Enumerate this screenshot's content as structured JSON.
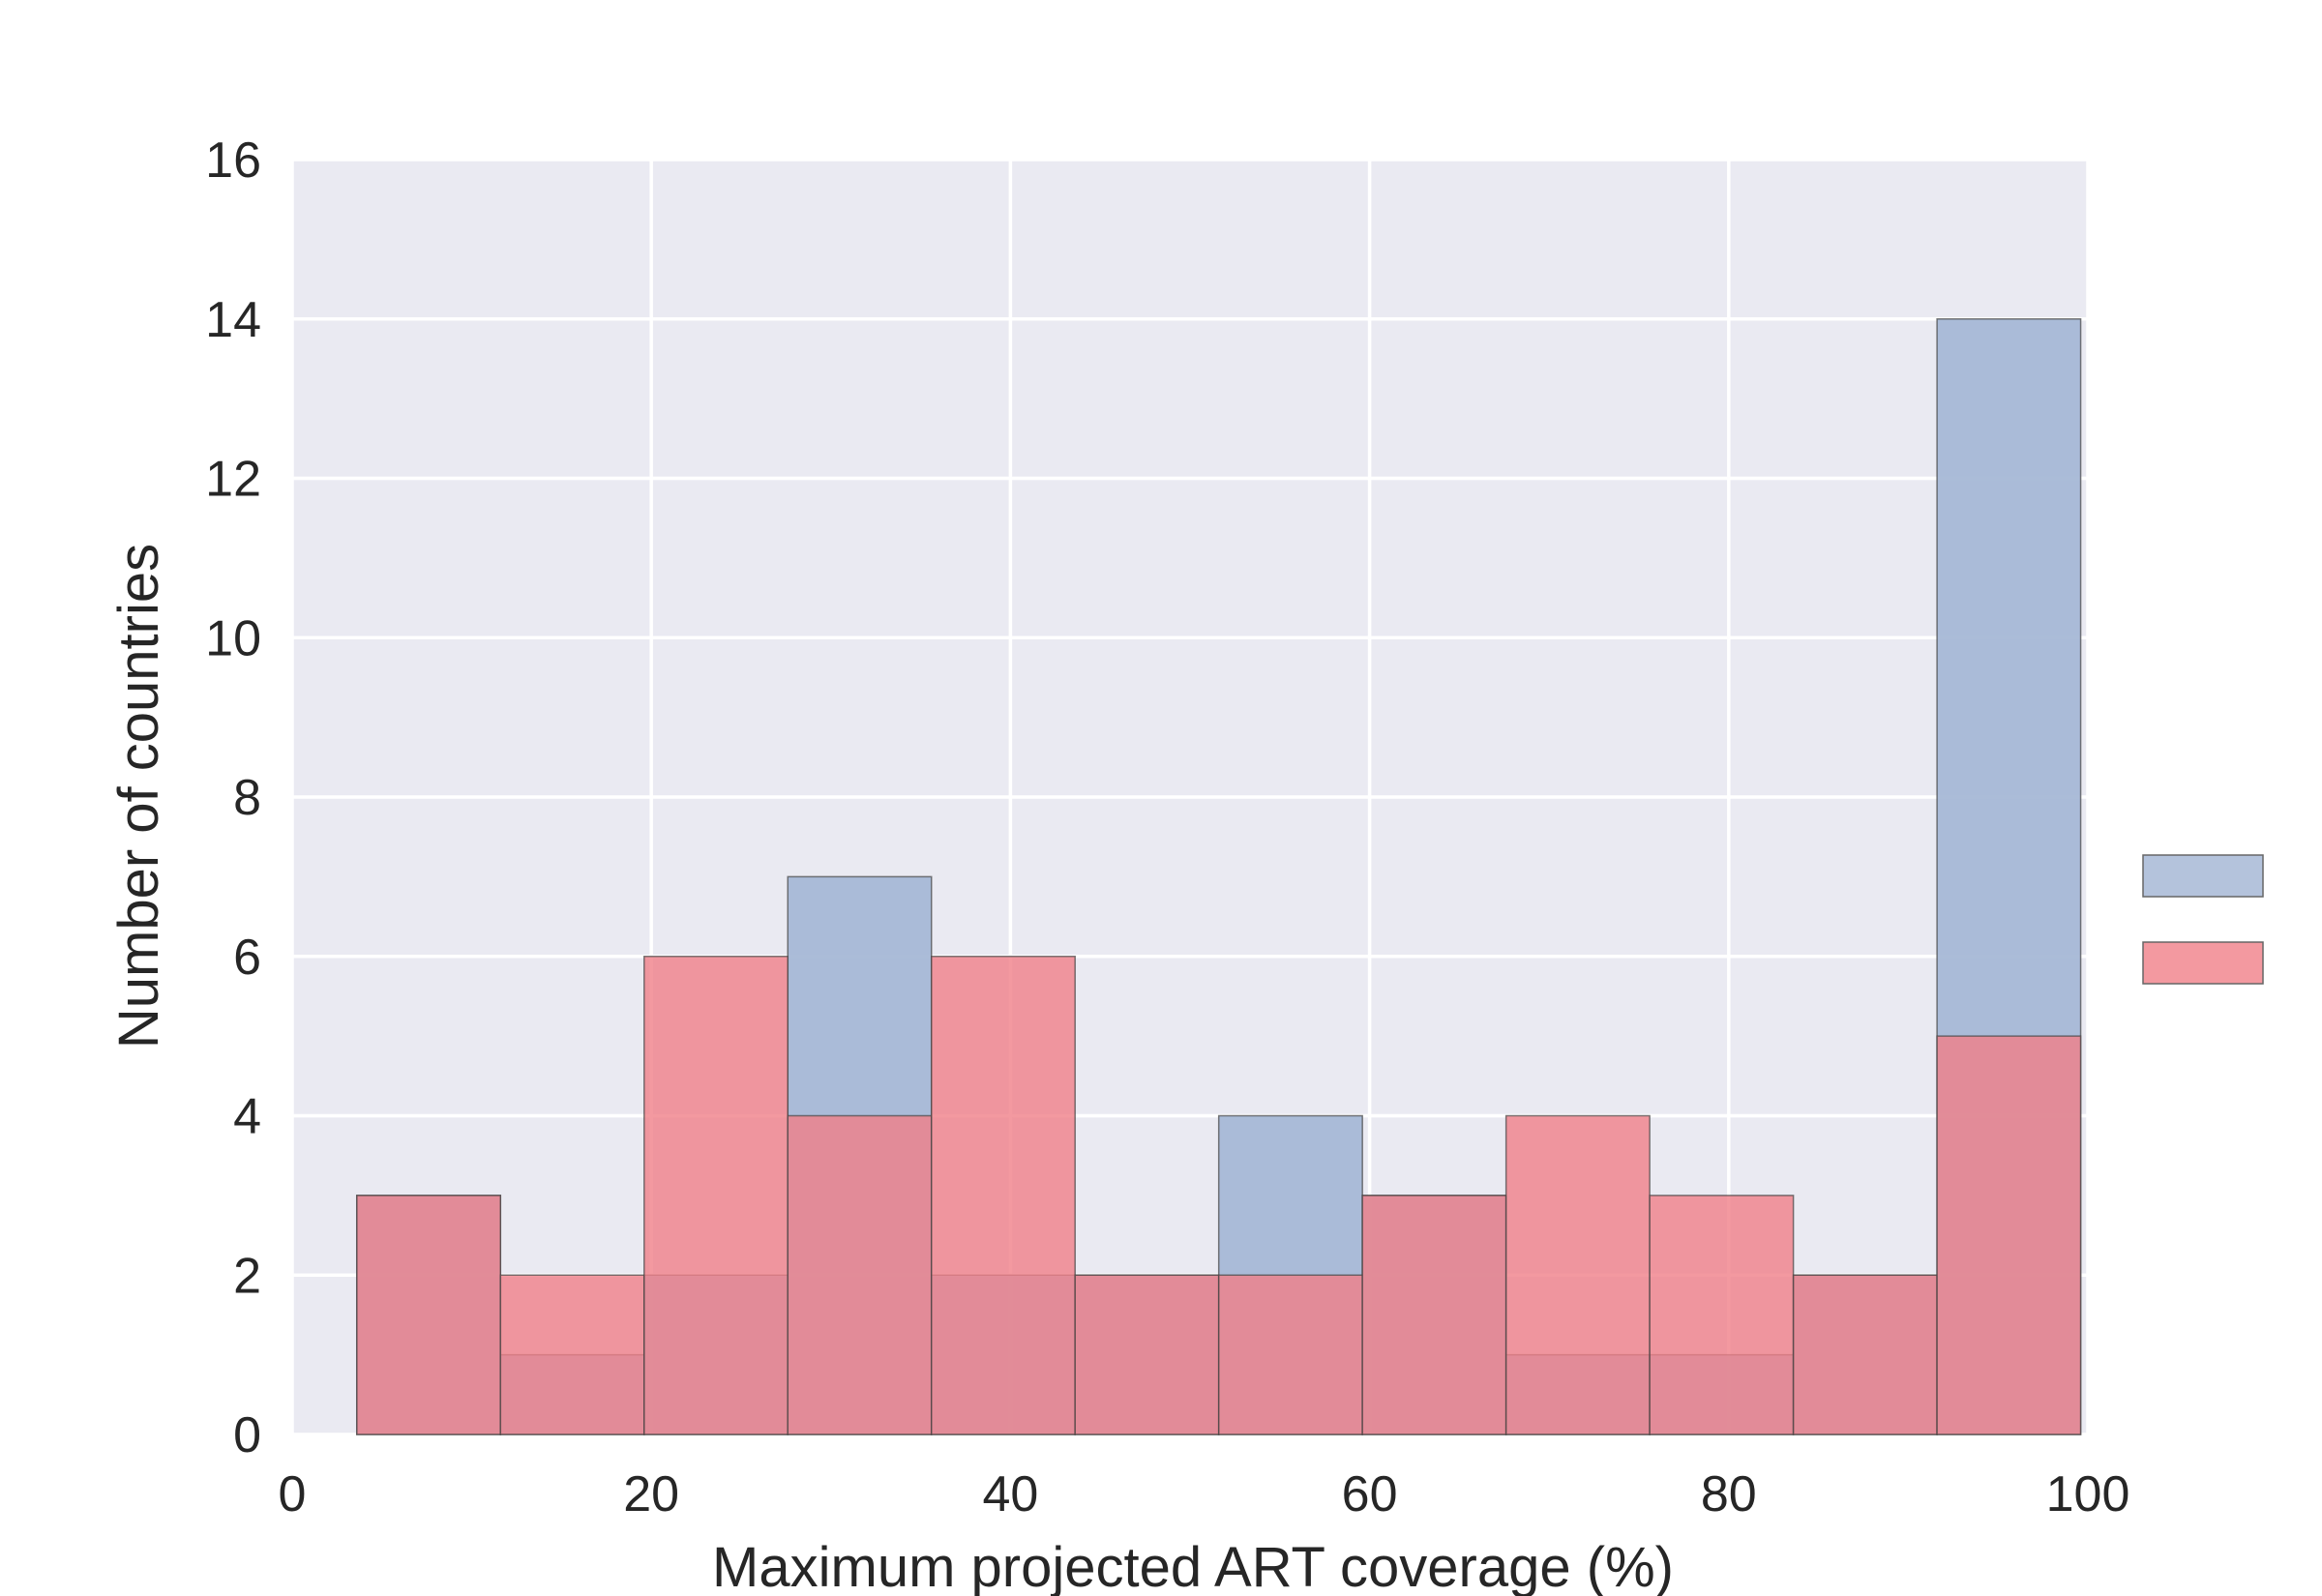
{
  "chart_data": {
    "type": "bar",
    "subtype": "overlaid-histogram",
    "xlabel": "Maximum projected ART coverage (%)",
    "ylabel": "Number of countries",
    "xlim": [
      0,
      100
    ],
    "ylim": [
      0,
      16
    ],
    "xticks": [
      0,
      20,
      40,
      60,
      80,
      100
    ],
    "yticks": [
      0,
      2,
      4,
      6,
      8,
      10,
      12,
      14,
      16
    ],
    "grid": true,
    "legend_position": "right",
    "bin_edges": [
      3.6,
      11.6,
      19.6,
      27.6,
      35.6,
      43.6,
      51.6,
      59.6,
      67.6,
      75.6,
      83.6,
      91.6,
      99.6
    ],
    "series": [
      {
        "values": [
          3,
          1,
          2,
          7,
          2,
          2,
          4,
          3,
          1,
          1,
          2,
          14
        ],
        "color": "#a7b8d6"
      },
      {
        "values": [
          3,
          2,
          6,
          4,
          6,
          2,
          2,
          3,
          4,
          3,
          2,
          5
        ],
        "color": "#f08088"
      }
    ]
  }
}
